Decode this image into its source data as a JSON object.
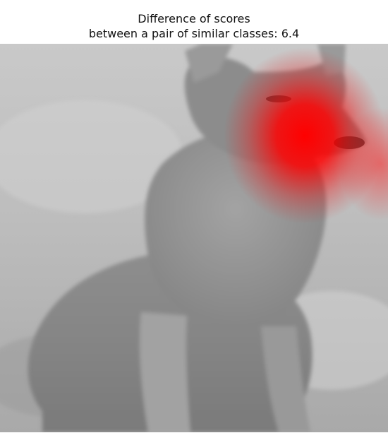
{
  "figure": {
    "title_line1": "Difference of scores",
    "title_line2": "between a pair of similar classes: 6.4",
    "image_description": "grayscale photo of a fox sitting on grass with a red saliency heatmap overlay on the muzzle",
    "heatmap_color": "#ff0000",
    "background_color": "#ffffff"
  }
}
